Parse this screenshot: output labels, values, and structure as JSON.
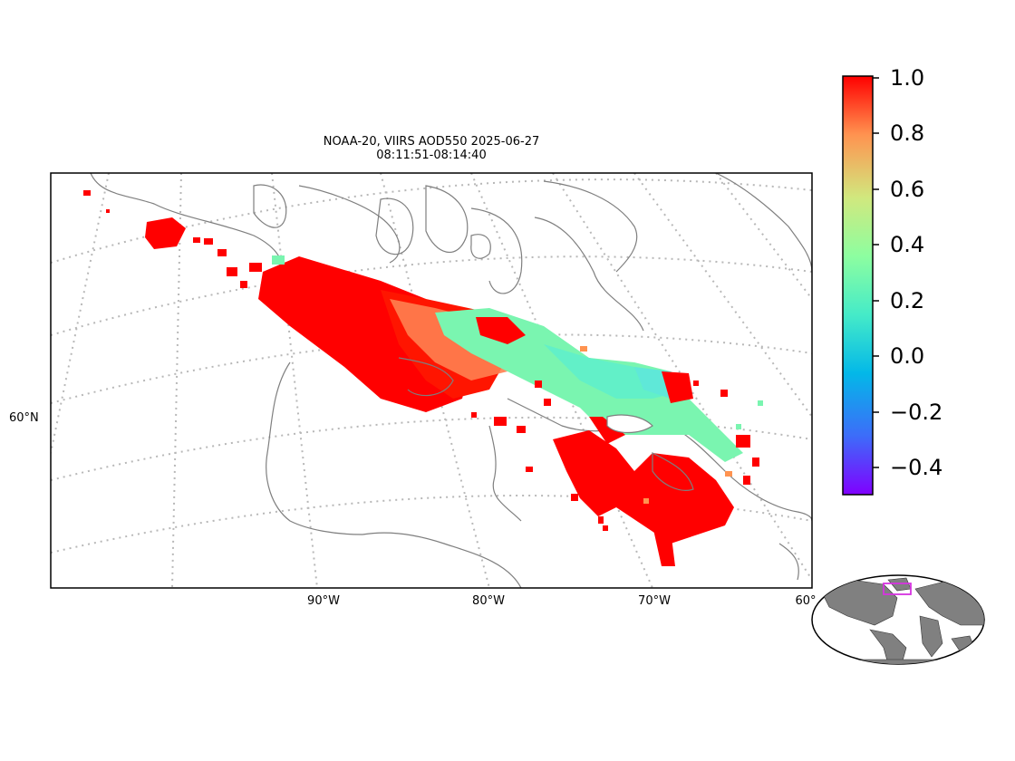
{
  "title_line1": "NOAA-20, VIIRS AOD550 2025-06-27",
  "title_line2": "08:11:51-08:14:40",
  "map": {
    "parallel_labels": [
      "60°N"
    ],
    "meridian_labels": [
      "90°W",
      "80°W",
      "70°W",
      "60°"
    ],
    "gridlines": "dotted"
  },
  "colorbar": {
    "ticks": [
      "1.0",
      "0.8",
      "0.6",
      "0.4",
      "0.2",
      "0.0",
      "−0.2",
      "−0.4"
    ],
    "range": [
      -0.5,
      1.0
    ],
    "colormap": "rainbow"
  },
  "inset": {
    "description": "world",
    "region_box_color": "#d633e0"
  },
  "colors": {
    "high_aod": "#ff0000",
    "mid_aod": "#ffa050",
    "low_aod": "#7affb0",
    "coastline": "#7f7f7f",
    "land_inset": "#808080"
  }
}
